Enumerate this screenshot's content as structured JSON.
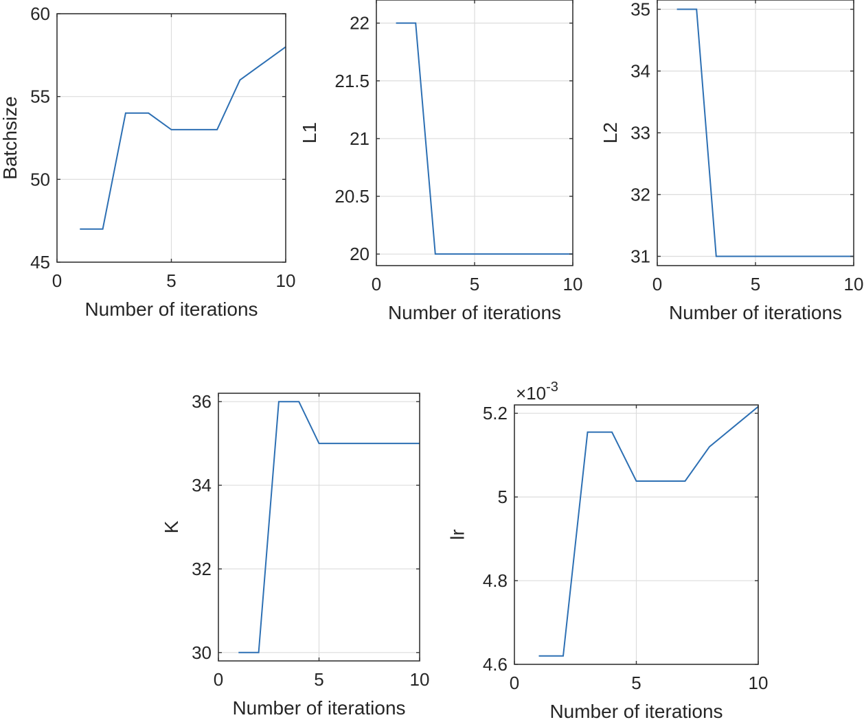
{
  "figure": {
    "background": "#ffffff"
  },
  "colors": {
    "line": "#2c6fb3",
    "grid": "#dcdcdc",
    "frame": "#333333",
    "text": "#262626"
  },
  "chart_data": [
    {
      "type": "line",
      "name": "batchsize",
      "xlabel": "Number of iterations",
      "ylabel": "Batchsize",
      "xlim": [
        0,
        10
      ],
      "ylim": [
        45,
        60
      ],
      "xticks": [
        0,
        5,
        10
      ],
      "xtick_labels": [
        "0",
        "5",
        "10"
      ],
      "yticks": [
        45,
        50,
        55,
        60
      ],
      "ytick_labels": [
        "45",
        "50",
        "55",
        "60"
      ],
      "grid": true,
      "exponent_label": "",
      "x": [
        1,
        2,
        3,
        4,
        5,
        6,
        7,
        8,
        9,
        10
      ],
      "y": [
        47,
        47,
        54,
        54,
        53,
        53,
        53,
        56,
        57,
        58
      ]
    },
    {
      "type": "line",
      "name": "l1",
      "xlabel": "Number of iterations",
      "ylabel": "L1",
      "xlim": [
        0,
        10
      ],
      "ylim": [
        19.9,
        22.2
      ],
      "xticks": [
        0,
        5,
        10
      ],
      "xtick_labels": [
        "0",
        "5",
        "10"
      ],
      "yticks": [
        20,
        20.5,
        21,
        21.5,
        22
      ],
      "ytick_labels": [
        "20",
        "20.5",
        "21",
        "21.5",
        "22"
      ],
      "grid": true,
      "exponent_label": "",
      "x": [
        1,
        2,
        3,
        4,
        5,
        6,
        7,
        8,
        9,
        10
      ],
      "y": [
        22,
        22,
        20,
        20,
        20,
        20,
        20,
        20,
        20,
        20
      ]
    },
    {
      "type": "line",
      "name": "l2",
      "xlabel": "Number of iterations",
      "ylabel": "L2",
      "xlim": [
        0,
        10
      ],
      "ylim": [
        30.85,
        35.15
      ],
      "xticks": [
        0,
        5,
        10
      ],
      "xtick_labels": [
        "0",
        "5",
        "10"
      ],
      "yticks": [
        31,
        32,
        33,
        34,
        35
      ],
      "ytick_labels": [
        "31",
        "32",
        "33",
        "34",
        "35"
      ],
      "grid": true,
      "exponent_label": "",
      "x": [
        1,
        2,
        3,
        4,
        5,
        6,
        7,
        8,
        9,
        10
      ],
      "y": [
        35,
        35,
        31,
        31,
        31,
        31,
        31,
        31,
        31,
        31
      ]
    },
    {
      "type": "line",
      "name": "k",
      "xlabel": "Number of iterations",
      "ylabel": "K",
      "xlim": [
        0,
        10
      ],
      "ylim": [
        29.8,
        36.2
      ],
      "xticks": [
        0,
        5,
        10
      ],
      "xtick_labels": [
        "0",
        "5",
        "10"
      ],
      "yticks": [
        30,
        32,
        34,
        36
      ],
      "ytick_labels": [
        "30",
        "32",
        "34",
        "36"
      ],
      "grid": true,
      "exponent_label": "",
      "x": [
        1,
        2,
        3,
        4,
        5,
        6,
        7,
        8,
        9,
        10
      ],
      "y": [
        30,
        30,
        36,
        36,
        35,
        35,
        35,
        35,
        35,
        35
      ]
    },
    {
      "type": "line",
      "name": "lr",
      "xlabel": "Number of iterations",
      "ylabel": "lr",
      "xlim": [
        0,
        10
      ],
      "ylim": [
        4.6,
        5.22
      ],
      "xticks": [
        0,
        5,
        10
      ],
      "xtick_labels": [
        "0",
        "5",
        "10"
      ],
      "yticks": [
        4.6,
        4.8,
        5,
        5.2
      ],
      "ytick_labels": [
        "4.6",
        "4.8",
        "5",
        "5.2"
      ],
      "grid": true,
      "exponent_label": "×10",
      "exponent_power": "-3",
      "x": [
        1,
        2,
        3,
        4,
        5,
        6,
        7,
        8,
        9,
        10
      ],
      "y": [
        4.62,
        4.62,
        5.155,
        5.155,
        5.038,
        5.038,
        5.038,
        5.12,
        5.168,
        5.216
      ]
    }
  ]
}
